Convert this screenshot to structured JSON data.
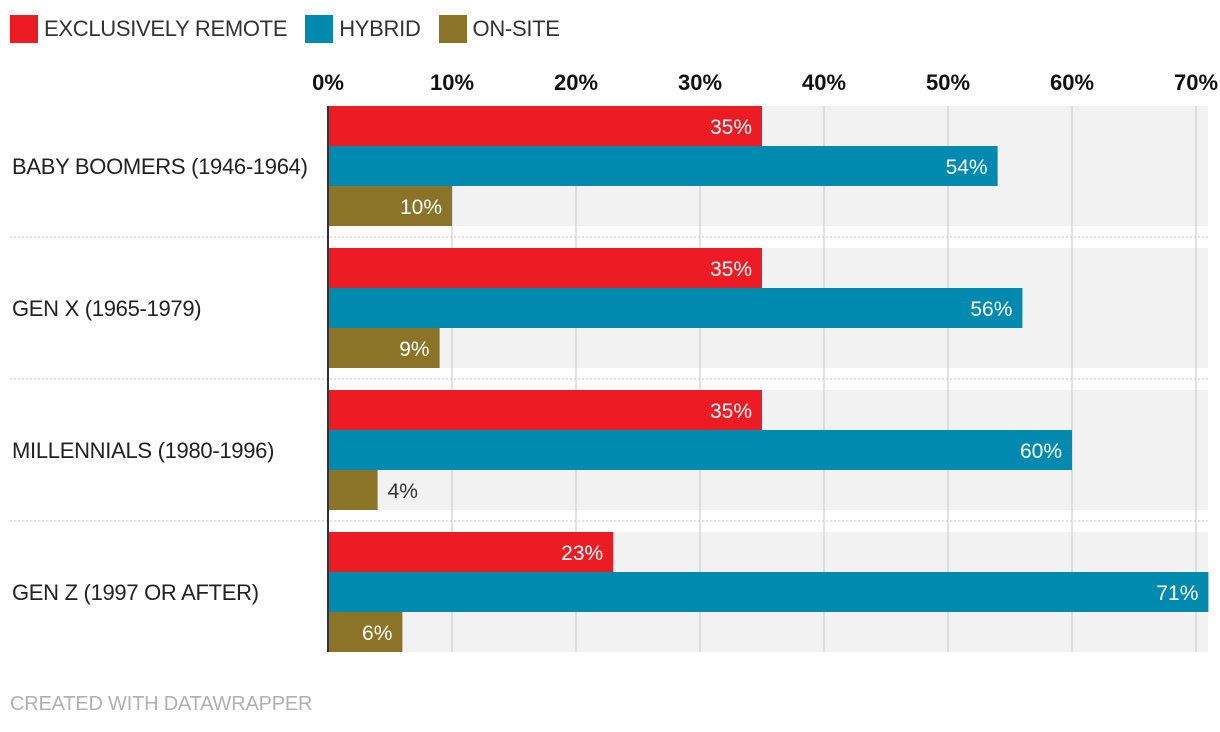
{
  "chart_data": {
    "type": "bar",
    "orientation": "horizontal",
    "categories": [
      "BABY BOOMERS (1946-1964)",
      "GEN X (1965-1979)",
      "MILLENNIALS (1980-1996)",
      "GEN Z (1997 OR AFTER)"
    ],
    "series": [
      {
        "name": "EXCLUSIVELY REMOTE",
        "color": "#ed1c24",
        "values": [
          35,
          35,
          35,
          23
        ]
      },
      {
        "name": "HYBRID",
        "color": "#008ab0",
        "values": [
          54,
          56,
          60,
          71
        ]
      },
      {
        "name": "ON-SITE",
        "color": "#8b7328",
        "values": [
          10,
          9,
          4,
          6
        ]
      }
    ],
    "xlim": [
      0,
      70
    ],
    "ticks": [
      0,
      10,
      20,
      30,
      40,
      50,
      60,
      70
    ],
    "tick_labels": [
      "0%",
      "10%",
      "20%",
      "30%",
      "40%",
      "50%",
      "60%",
      "70%"
    ],
    "value_suffix": "%",
    "legend_position": "top-left",
    "grid": true
  },
  "footer": "CREATED WITH DATAWRAPPER"
}
